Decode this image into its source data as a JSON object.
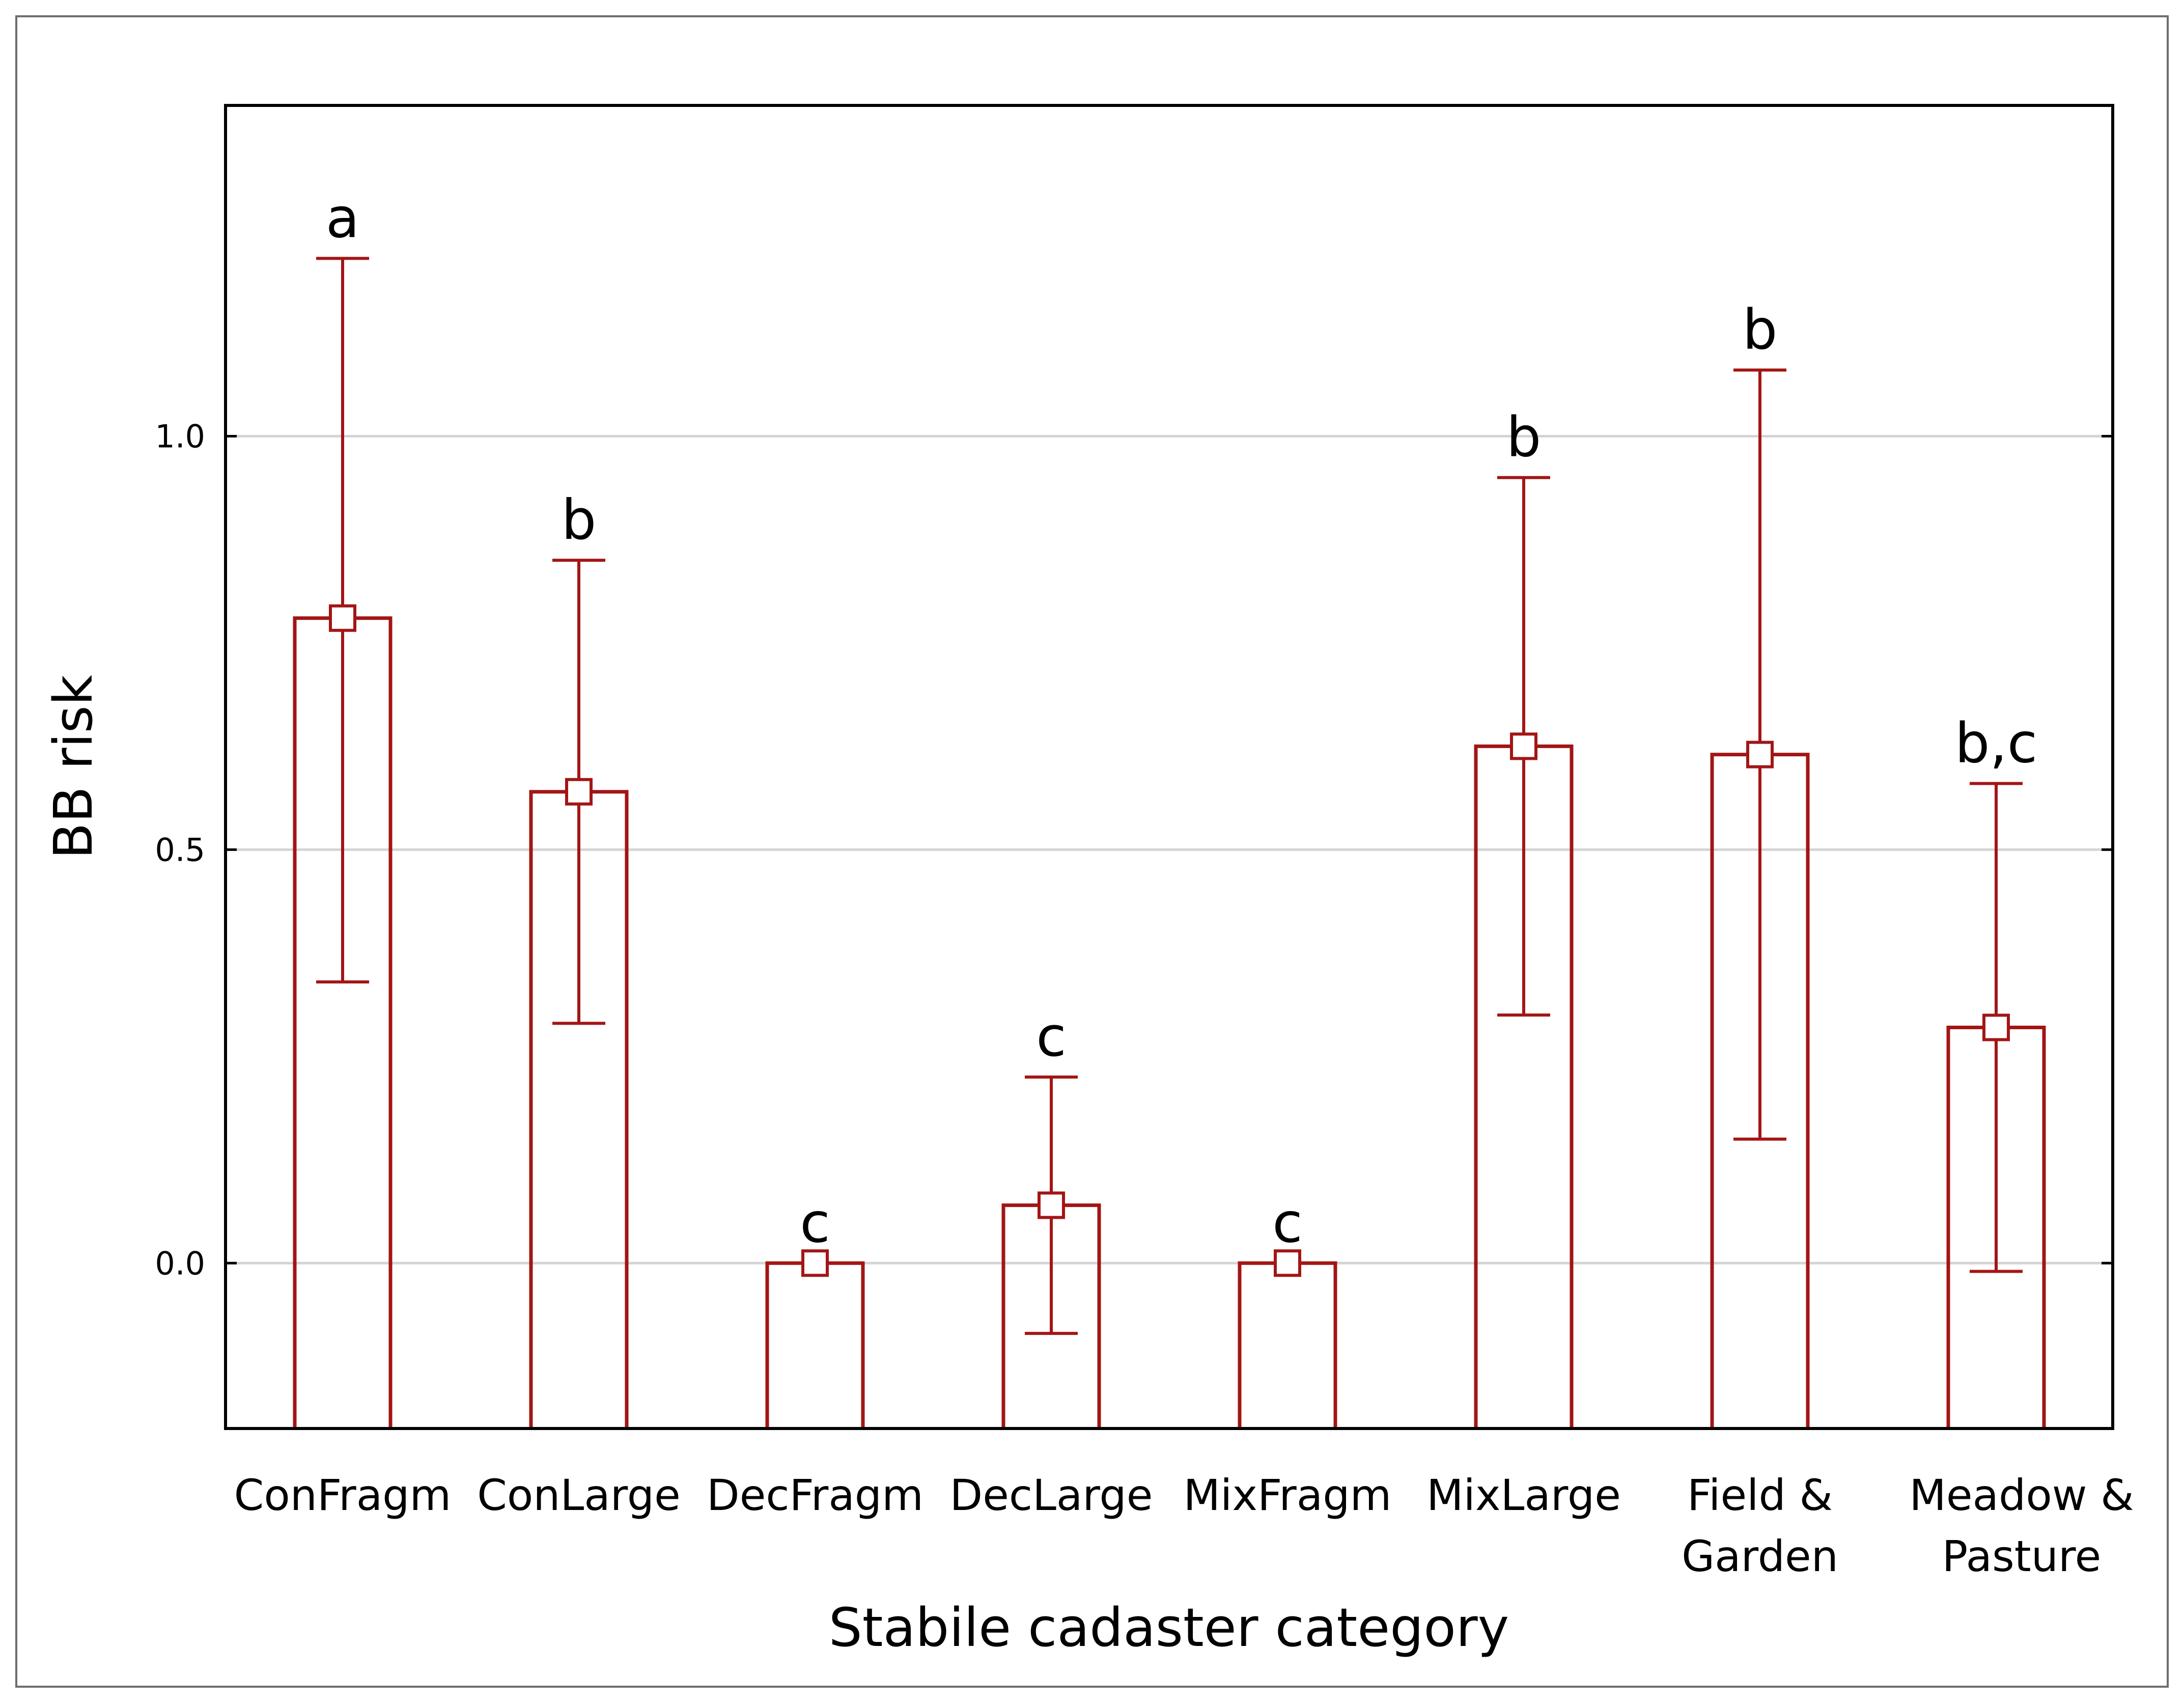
{
  "chart_data": {
    "type": "bar",
    "title": "",
    "xlabel": "Stabile cadaster category",
    "ylabel": "BB risk",
    "ylim": [
      -0.2,
      1.4
    ],
    "yticks": [
      "0.0",
      "0.5",
      "1.0"
    ],
    "grid": true,
    "categories": [
      [
        "ConFragm"
      ],
      [
        "ConLarge"
      ],
      [
        "DecFragm"
      ],
      [
        "DecLarge"
      ],
      [
        "MixFragm"
      ],
      [
        "MixLarge"
      ],
      [
        "Field &",
        "Garden"
      ],
      [
        "Meadow &",
        "Pasture"
      ]
    ],
    "values": [
      0.78,
      0.57,
      0.0,
      0.07,
      0.0,
      0.625,
      0.615,
      0.285
    ],
    "error_low": [
      0.34,
      0.29,
      0.0,
      -0.085,
      0.0,
      0.3,
      0.15,
      -0.01
    ],
    "error_high": [
      1.215,
      0.85,
      0.0,
      0.225,
      0.0,
      0.95,
      1.08,
      0.58
    ],
    "significance": [
      "a",
      "b",
      "c",
      "c",
      "c",
      "b",
      "b",
      "b,c"
    ],
    "color": "#a31515"
  }
}
